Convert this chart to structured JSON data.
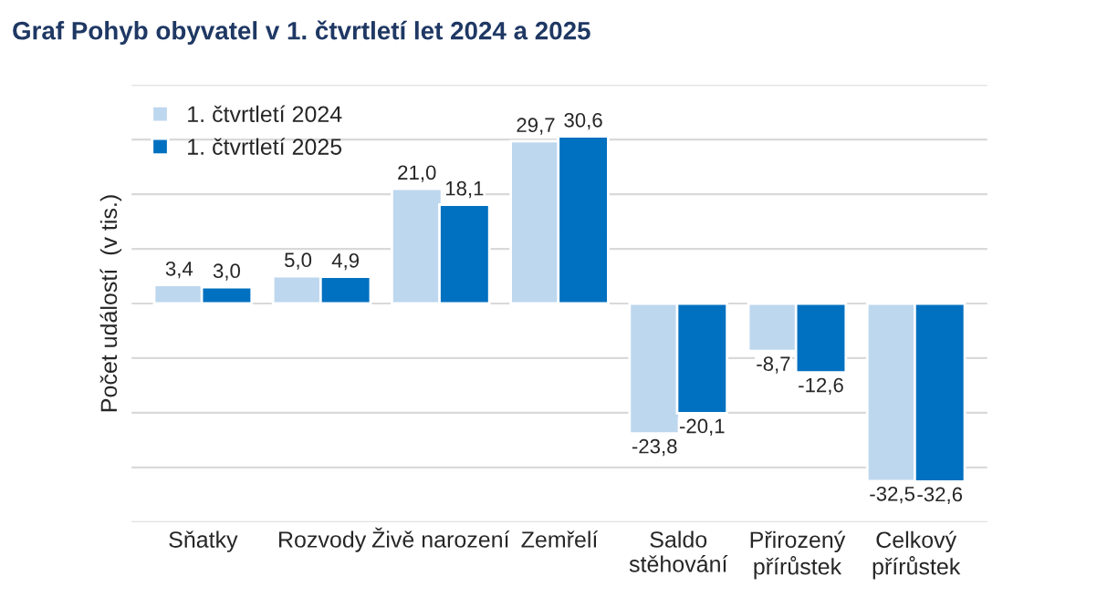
{
  "chart_data": {
    "type": "bar",
    "title": "Graf Pohyb obyvatel v 1. čtvrtletí let 2024 a 2025",
    "ylabel": "Počet událostí  (v tis.)",
    "categories": [
      "Sňatky",
      "Rozvody",
      "Živě narození",
      "Zemřelí",
      "Saldo\nstěhování",
      "Přirozený\npřírůstek",
      "Celkový\npřírůstek"
    ],
    "series": [
      {
        "name": "1. čtvrtletí 2024",
        "color": "#bdd7ee",
        "values": [
          3.4,
          5.0,
          21.0,
          29.7,
          -23.8,
          -8.7,
          -32.5
        ],
        "value_labels": [
          "3,4",
          "5,0",
          "21,0",
          "29,7",
          "-23,8",
          "-8,7",
          "-32,5"
        ]
      },
      {
        "name": "1. čtvrtletí 2025",
        "color": "#0070c0",
        "values": [
          3.0,
          4.9,
          18.1,
          30.6,
          -20.1,
          -12.6,
          -32.6
        ],
        "value_labels": [
          "3,0",
          "4,9",
          "18,1",
          "30,6",
          "-20,1",
          "-12,6",
          "-32,6"
        ]
      }
    ],
    "ylim": [
      -40,
      40
    ],
    "yticks": [
      {
        "value": -40,
        "label": null
      },
      {
        "value": -30,
        "label": null
      },
      {
        "value": -20,
        "label": null
      },
      {
        "value": -10,
        "label": null
      },
      {
        "value": 0,
        "label": null
      },
      {
        "value": 10,
        "label": null
      },
      {
        "value": 20,
        "label": null
      },
      {
        "value": 30,
        "label": null
      },
      {
        "value": 40,
        "label": null
      }
    ],
    "tick_labels": "x",
    "grid": "y",
    "legend": "top left"
  }
}
